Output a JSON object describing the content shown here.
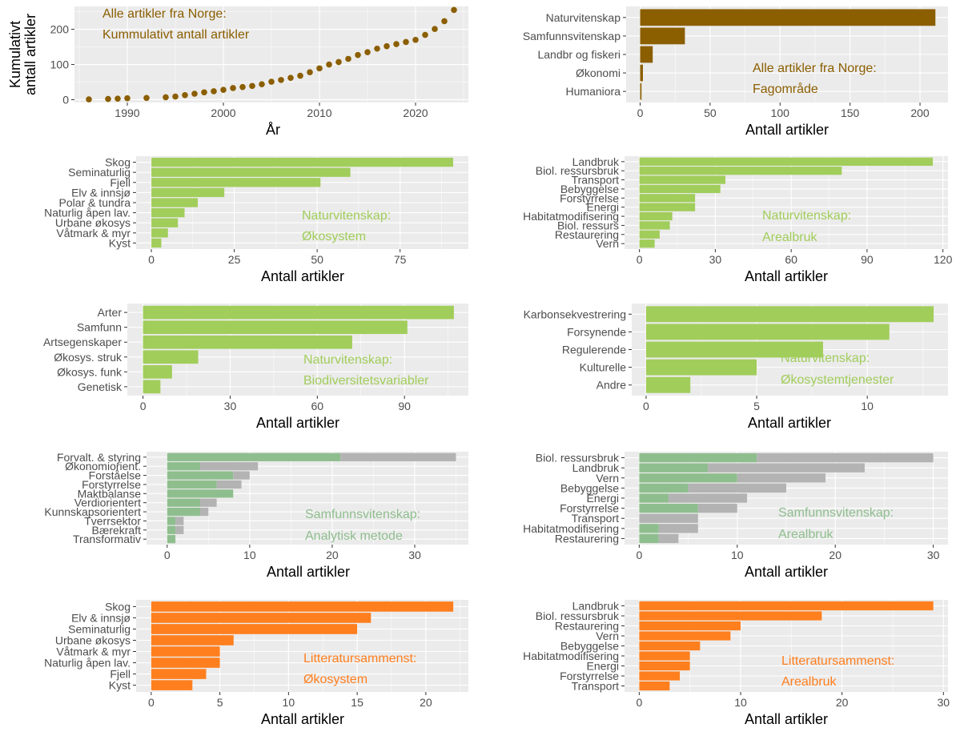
{
  "colors": {
    "brown": "#8B5E00",
    "light_green": "#A1CD5B",
    "sage": "#8FBE8E",
    "grey_bar": "#B3B3B3",
    "orange": "#FF7F1E",
    "panel_bg": "#EBEBEB"
  },
  "chart_data": [
    {
      "id": "p1",
      "type": "scatter",
      "color_key": "brown",
      "title_lines": [
        "Alle artikler fra Norge:",
        "Kummulativt antall artikler"
      ],
      "xlabel": "År",
      "ylabel_lines": [
        "Kumulativt",
        "antall artikler"
      ],
      "xlim": [
        1984.5,
        2025.5
      ],
      "ylim": [
        -8,
        265
      ],
      "x_ticks": [
        1990,
        2000,
        2010,
        2020
      ],
      "y_ticks": [
        0,
        100,
        200
      ],
      "x": [
        1986,
        1988,
        1989,
        1990,
        1992,
        1994,
        1995,
        1996,
        1997,
        1998,
        1999,
        2000,
        2001,
        2002,
        2003,
        2004,
        2005,
        2006,
        2007,
        2008,
        2009,
        2010,
        2011,
        2012,
        2013,
        2014,
        2015,
        2016,
        2017,
        2018,
        2019,
        2020,
        2021,
        2022,
        2023,
        2024
      ],
      "y": [
        1,
        2,
        3,
        4,
        5,
        7,
        9,
        13,
        17,
        21,
        24,
        28,
        33,
        36,
        39,
        44,
        51,
        56,
        62,
        68,
        78,
        89,
        100,
        107,
        116,
        127,
        135,
        145,
        152,
        158,
        164,
        170,
        184,
        201,
        223,
        255
      ]
    },
    {
      "id": "p2",
      "type": "bar",
      "orientation": "horizontal",
      "color_key": "brown",
      "title_lines": [
        "Alle artikler fra Norge:",
        "Fagområde"
      ],
      "xlabel": "Antall artikler",
      "xlim": [
        -10,
        220
      ],
      "x_ticks": [
        0,
        50,
        100,
        150,
        200
      ],
      "categories": [
        "Naturvitenskap",
        "Samfunnsvitenskap",
        "Landbr og fiskeri",
        "Økonomi",
        "Humaniora"
      ],
      "values": [
        211,
        32,
        9,
        2,
        1
      ]
    },
    {
      "id": "p3",
      "type": "bar",
      "orientation": "horizontal",
      "color_key": "light_green",
      "title_lines": [
        "Naturvitenskap:",
        "Økosystem"
      ],
      "xlabel": "Antall artikler",
      "xlim": [
        -4.6,
        95.6
      ],
      "x_ticks": [
        0,
        25,
        50,
        75
      ],
      "categories": [
        "Skog",
        "Seminaturlig",
        "Fjell",
        "Elv & innsjø",
        "Polar & tundra",
        "Naturlig åpen lav.",
        "Urbane økosys",
        "Våtmark & myr",
        "Kyst"
      ],
      "values": [
        91,
        60,
        51,
        22,
        14,
        10,
        8,
        5,
        3
      ]
    },
    {
      "id": "p4",
      "type": "bar",
      "orientation": "horizontal",
      "color_key": "light_green",
      "title_lines": [
        "Naturvitenskap:",
        "Arealbruk"
      ],
      "xlabel": "Antall artikler",
      "xlim": [
        -5.9,
        122
      ],
      "x_ticks": [
        0,
        30,
        60,
        90,
        120
      ],
      "categories": [
        "Landbruk",
        "Biol. ressursbruk",
        "Transport",
        "Bebyggelse",
        "Forstyrrelse",
        "Energi",
        "Habitatmodifisering",
        "Biol. ressurs",
        "Restaurering",
        "Vern"
      ],
      "values": [
        116,
        80,
        34,
        32,
        22,
        22,
        13,
        12,
        8,
        6
      ]
    },
    {
      "id": "p5",
      "type": "bar",
      "orientation": "horizontal",
      "color_key": "light_green",
      "title_lines": [
        "Naturvitenskap:",
        "Biodiversitetsvariabler"
      ],
      "xlabel": "Antall artikler",
      "xlim": [
        -5.4,
        112
      ],
      "x_ticks": [
        0,
        30,
        60,
        90
      ],
      "categories": [
        "Arter",
        "Samfunn",
        "Artsegenskaper",
        "Økosys. struk",
        "Økosys. funk",
        "Genetisk"
      ],
      "values": [
        107,
        91,
        72,
        19,
        10,
        6
      ]
    },
    {
      "id": "p6",
      "type": "bar",
      "orientation": "horizontal",
      "color_key": "light_green",
      "title_lines": [
        "Naturvitenskap:",
        "Økosystemtjenester"
      ],
      "xlabel": "Antall artikler",
      "xlim": [
        -0.65,
        13.65
      ],
      "x_ticks": [
        0,
        5,
        10
      ],
      "categories": [
        "Karbonsekvestrering",
        "Forsynende",
        "Regulerende",
        "Kulturelle",
        "Andre"
      ],
      "values": [
        13,
        11,
        8,
        5,
        2
      ]
    },
    {
      "id": "p7",
      "type": "bar",
      "orientation": "horizontal",
      "stacked": true,
      "color_keys": [
        "sage",
        "grey_bar"
      ],
      "title_lines": [
        "Samfunnsvitenskap:",
        "Analytisk metode"
      ],
      "xlabel": "Antall artikler",
      "xlim": [
        -2.5,
        36.5
      ],
      "x_ticks": [
        0,
        10,
        20,
        30
      ],
      "categories": [
        "Forvalt. & styring",
        "Økonomiorient.",
        "Forståelse",
        "Forstyrrelse",
        "Maktbalanse",
        "Verdiorientert",
        "Kunnskapsorientert",
        "Tverrsektor",
        "Bærekraft",
        "Transformativ"
      ],
      "series": [
        {
          "values": [
            21,
            4,
            8,
            6,
            8,
            4,
            4,
            1,
            1,
            1
          ]
        },
        {
          "values": [
            14,
            7,
            2,
            3,
            0,
            2,
            1,
            1,
            1,
            0
          ]
        }
      ]
    },
    {
      "id": "p8",
      "type": "bar",
      "orientation": "horizontal",
      "stacked": true,
      "color_keys": [
        "sage",
        "grey_bar"
      ],
      "title_lines": [
        "Samfunnsvitenskap:",
        "Arealbruk"
      ],
      "xlabel": "Antall artikler",
      "xlim": [
        -1.5,
        31.5
      ],
      "x_ticks": [
        0,
        10,
        20,
        30
      ],
      "categories": [
        "Biol. ressursbruk",
        "Landbruk",
        "Vern",
        "Bebyggelse",
        "Energi",
        "Forstyrrelse",
        "Transport",
        "Habitatmodifisering",
        "Restaurering"
      ],
      "series": [
        {
          "values": [
            12,
            7,
            10,
            5,
            3,
            6,
            0,
            2,
            2
          ]
        },
        {
          "values": [
            18,
            16,
            9,
            10,
            8,
            4,
            6,
            4,
            2
          ]
        }
      ]
    },
    {
      "id": "p9",
      "type": "bar",
      "orientation": "horizontal",
      "color_key": "orange",
      "title_lines": [
        "Litteratursammenst:",
        "Økosystem"
      ],
      "xlabel": "Antall artikler",
      "xlim": [
        -1.1,
        23.1
      ],
      "x_ticks": [
        0,
        5,
        10,
        15,
        20
      ],
      "categories": [
        "Skog",
        "Elv & innsjø",
        "Seminaturlig",
        "Urbane økosys",
        "Våtmark & myr",
        "Naturlig åpen lav.",
        "Fjell",
        "Kyst"
      ],
      "values": [
        22,
        16,
        15,
        6,
        5,
        5,
        4,
        3
      ]
    },
    {
      "id": "p10",
      "type": "bar",
      "orientation": "horizontal",
      "color_key": "orange",
      "title_lines": [
        "Litteratursammenst:",
        "Arealbruk"
      ],
      "xlabel": "Antall artikler",
      "xlim": [
        -1.45,
        30.45
      ],
      "x_ticks": [
        0,
        10,
        20,
        30
      ],
      "categories": [
        "Landbruk",
        "Biol. ressursbruk",
        "Restaurering",
        "Vern",
        "Bebyggelse",
        "Habitatmodifisering",
        "Energi",
        "Forstyrrelse",
        "Transport"
      ],
      "values": [
        29,
        18,
        10,
        9,
        6,
        5,
        5,
        4,
        3
      ]
    }
  ]
}
